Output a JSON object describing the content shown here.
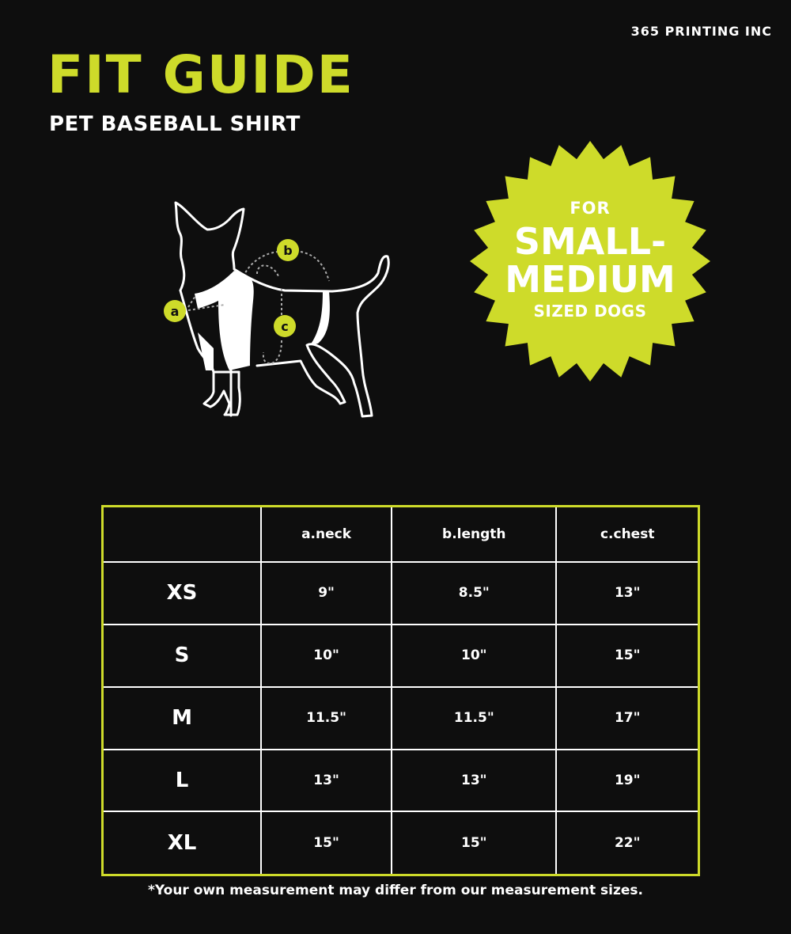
{
  "brand": "365 PRINTING INC",
  "title": "FIT GUIDE",
  "subtitle": "PET BASEBALL SHIRT",
  "colors": {
    "accent": "#cedb2a",
    "background": "#0e0e0e",
    "text": "#ffffff"
  },
  "diagram": {
    "labels": [
      "a",
      "b",
      "c"
    ]
  },
  "badge": {
    "line1": "FOR",
    "line2": "SMALL-",
    "line3": "MEDIUM",
    "line4": "SIZED DOGS"
  },
  "table": {
    "headers": [
      "",
      "a.neck",
      "b.length",
      "c.chest"
    ],
    "rows": [
      {
        "size": "XS",
        "neck": "9\"",
        "length": "8.5\"",
        "chest": "13\""
      },
      {
        "size": "S",
        "neck": "10\"",
        "length": "10\"",
        "chest": "15\""
      },
      {
        "size": "M",
        "neck": "11.5\"",
        "length": "11.5\"",
        "chest": "17\""
      },
      {
        "size": "L",
        "neck": "13\"",
        "length": "13\"",
        "chest": "19\""
      },
      {
        "size": "XL",
        "neck": "15\"",
        "length": "15\"",
        "chest": "22\""
      }
    ]
  },
  "footnote": "*Your own measurement may differ from our measurement sizes."
}
